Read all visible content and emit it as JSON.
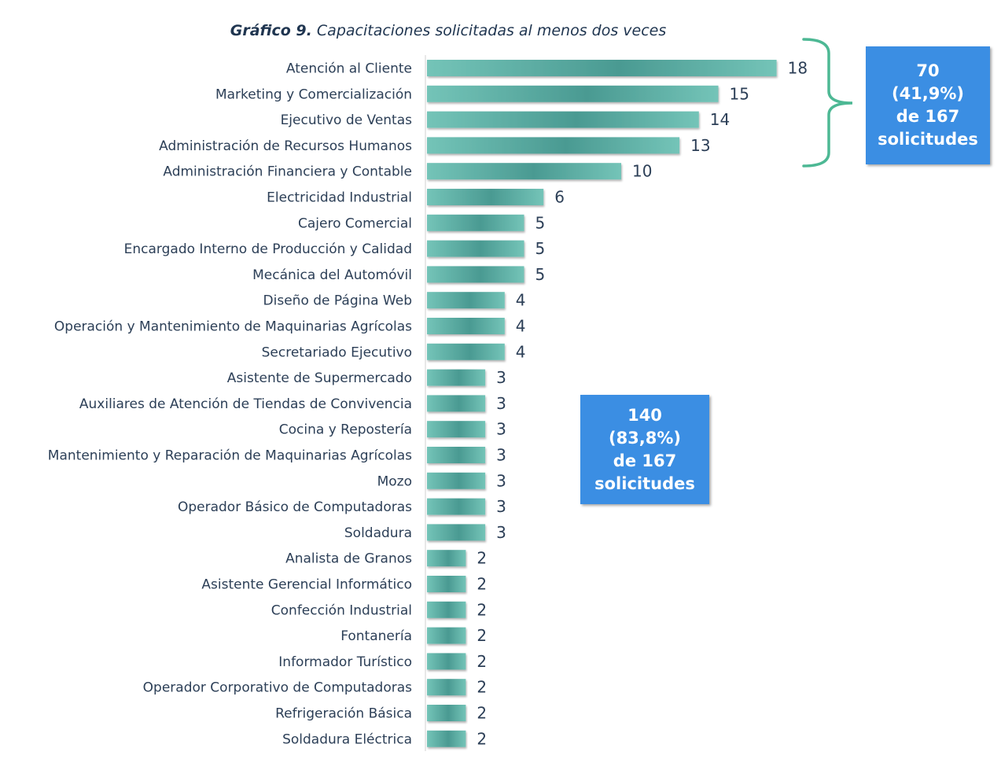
{
  "title": {
    "prefix": "Gráfico 9.",
    "text": "Capacitaciones solicitadas al menos dos veces"
  },
  "colors": {
    "bar_light": "#74c4b8",
    "bar_dark": "#4a9a92",
    "bracket": "#4db894",
    "callout": "#3b8ee3",
    "axis": "#d0d0d0"
  },
  "callouts": {
    "top": {
      "line1": "70",
      "line2": "(41,9%)",
      "line3": "de 167",
      "line4": "solicitudes"
    },
    "mid": {
      "line1": "140",
      "line2": "(83,8%)",
      "line3": "de 167",
      "line4": "solicitudes"
    }
  },
  "chart_data": {
    "type": "bar",
    "orientation": "horizontal",
    "title": "Gráfico 9. Capacitaciones solicitadas al menos dos veces",
    "categories": [
      "Atención al Cliente",
      "Marketing y Comercialización",
      "Ejecutivo de Ventas",
      "Administración de Recursos Humanos",
      "Administración Financiera y Contable",
      "Electricidad Industrial",
      "Cajero Comercial",
      "Encargado Interno de Producción y Calidad",
      "Mecánica del Automóvil",
      "Diseño de Página Web",
      "Operación y Mantenimiento de Maquinarias Agrícolas",
      "Secretariado Ejecutivo",
      "Asistente de Supermercado",
      "Auxiliares de Atención de Tiendas de Convivencia",
      "Cocina y Repostería",
      "Mantenimiento y Reparación de Maquinarias Agrícolas",
      "Mozo",
      "Operador Básico de Computadoras",
      "Soldadura",
      "Analista de Granos",
      "Asistente Gerencial Informático",
      "Confección Industrial",
      "Fontanería",
      "Informador Turístico",
      "Operador Corporativo de Computadoras",
      "Refrigeración Básica",
      "Soldadura Eléctrica"
    ],
    "values": [
      18,
      15,
      14,
      13,
      10,
      6,
      5,
      5,
      5,
      4,
      4,
      4,
      3,
      3,
      3,
      3,
      3,
      3,
      3,
      2,
      2,
      2,
      2,
      2,
      2,
      2,
      2
    ],
    "xlim": [
      0,
      18
    ],
    "data_labels": true,
    "grid": false,
    "legend": false
  }
}
